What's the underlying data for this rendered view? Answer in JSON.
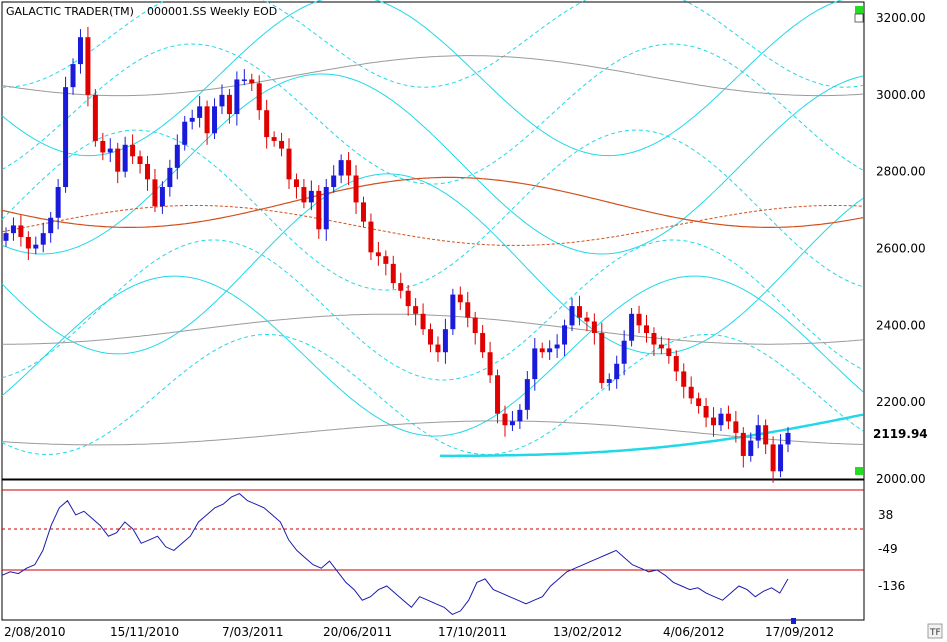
{
  "app": {
    "title": "GALACTIC TRADER(TM)",
    "symbol_info": "000001.SS Weekly EOD",
    "tf_label": "TF",
    "last_price_label": "2119.94"
  },
  "colors": {
    "background": "#ffffff",
    "panel_border": "#000000",
    "up_candle": "#1a1adb",
    "down_candle": "#e00000",
    "planet_lines": "#22d8e8",
    "grey_lines": "#9a9a9a",
    "orange_lines": "#d2501e",
    "oscillator": "#1b1bb0",
    "osc_level": "#cc0000",
    "marker": "#22dd22"
  },
  "chart_data": {
    "type": "candlestick",
    "price_axis": {
      "min": 2000,
      "max": 3200,
      "ticks": [
        "3200.00",
        "3000.00",
        "2800.00",
        "2600.00",
        "2400.00",
        "2200.00",
        "2000.00"
      ]
    },
    "osc_axis": {
      "ticks": [
        "38",
        "-49",
        "-136"
      ]
    },
    "x_labels": [
      "2/08/2010",
      "15/11/2010",
      "7/03/2011",
      "20/06/2011",
      "17/10/2011",
      "13/02/2012",
      "4/06/2012",
      "17/09/2012"
    ],
    "last_price": 2119.94,
    "closes": [
      2640,
      2660,
      2630,
      2600,
      2610,
      2640,
      2680,
      2760,
      3020,
      3080,
      3150,
      3000,
      2880,
      2850,
      2860,
      2800,
      2870,
      2840,
      2820,
      2780,
      2710,
      2760,
      2810,
      2870,
      2930,
      2940,
      2970,
      2900,
      2970,
      3000,
      2950,
      3040,
      3040,
      3030,
      2960,
      2890,
      2880,
      2860,
      2780,
      2760,
      2720,
      2750,
      2650,
      2760,
      2790,
      2830,
      2790,
      2720,
      2670,
      2590,
      2580,
      2560,
      2510,
      2490,
      2450,
      2430,
      2390,
      2350,
      2330,
      2390,
      2480,
      2460,
      2420,
      2380,
      2330,
      2270,
      2170,
      2140,
      2150,
      2180,
      2260,
      2340,
      2330,
      2340,
      2350,
      2400,
      2450,
      2420,
      2410,
      2380,
      2250,
      2260,
      2300,
      2360,
      2430,
      2400,
      2380,
      2350,
      2340,
      2320,
      2280,
      2240,
      2210,
      2190,
      2160,
      2140,
      2170,
      2150,
      2120,
      2060,
      2100,
      2140,
      2090,
      2020,
      2090,
      2120
    ],
    "oscillator": [
      -130,
      -120,
      -125,
      -110,
      -100,
      -60,
      10,
      60,
      80,
      40,
      50,
      30,
      10,
      -20,
      -10,
      20,
      0,
      -40,
      -30,
      -20,
      -50,
      -60,
      -40,
      -20,
      20,
      40,
      60,
      70,
      90,
      100,
      80,
      70,
      60,
      40,
      20,
      -30,
      -60,
      -80,
      -100,
      -110,
      -90,
      -120,
      -150,
      -170,
      -200,
      -190,
      -170,
      -160,
      -180,
      -200,
      -220,
      -190,
      -200,
      -210,
      -220,
      -240,
      -230,
      -200,
      -150,
      -140,
      -170,
      -180,
      -190,
      -200,
      -210,
      -200,
      -190,
      -160,
      -140,
      -120,
      -110,
      -100,
      -90,
      -80,
      -70,
      -60,
      -80,
      -100,
      -110,
      -120,
      -115,
      -130,
      -150,
      -160,
      -170,
      -165,
      -180,
      -190,
      -200,
      -180,
      -160,
      -170,
      -190,
      -175,
      -165,
      -180,
      -140
    ]
  }
}
